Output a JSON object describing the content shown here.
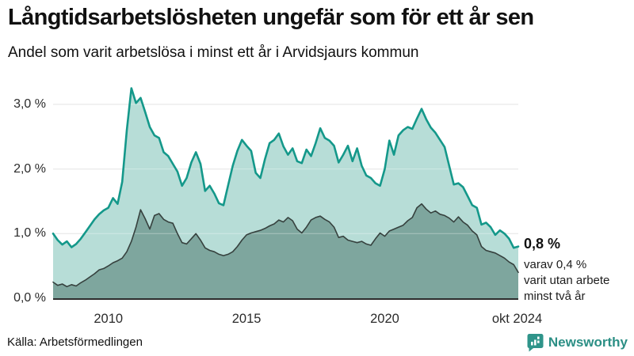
{
  "header": {
    "title": "Långtidsarbetslösheten ungefär som för ett år sen",
    "subtitle": "Andel som varit arbetslösa i minst ett år i Arvidsjaurs kommun"
  },
  "chart_data": {
    "type": "area",
    "title": "Långtidsarbetslösheten ungefär som för ett år sen",
    "subtitle": "Andel som varit arbetslösa i minst ett år i Arvidsjaurs kommun",
    "unit": "%",
    "x_start_year": 2008,
    "points_per_year": 6,
    "x_end_label": "okt 2024",
    "grid": true,
    "legend_position": "none",
    "y_axis": {
      "range": [
        0,
        3.4
      ],
      "ticks": [
        {
          "value": 3,
          "label": "3,0 %"
        },
        {
          "value": 2,
          "label": "2,0 %"
        },
        {
          "value": 1,
          "label": "1,0 %"
        },
        {
          "value": 0,
          "label": "0,0 %"
        }
      ]
    },
    "x_axis": {
      "ticks": [
        {
          "year": 2010,
          "label": "2010"
        },
        {
          "year": 2015,
          "label": "2015"
        },
        {
          "year": 2020,
          "label": "2020"
        },
        {
          "year": 2024.79,
          "label": "okt 2024"
        }
      ]
    },
    "series": [
      {
        "name": "Arbetslösa minst ett år",
        "line_color": "#14988a",
        "fill_color": "#b7ddd7",
        "line_width": 2.6,
        "last_value_label": "0,8 %",
        "values": [
          1.0,
          0.9,
          0.83,
          0.88,
          0.79,
          0.84,
          0.92,
          1.02,
          1.12,
          1.22,
          1.3,
          1.36,
          1.4,
          1.55,
          1.46,
          1.8,
          2.6,
          3.25,
          3.02,
          3.1,
          2.88,
          2.65,
          2.52,
          2.48,
          2.26,
          2.2,
          2.08,
          1.96,
          1.74,
          1.86,
          2.1,
          2.26,
          2.08,
          1.66,
          1.74,
          1.62,
          1.47,
          1.44,
          1.75,
          2.05,
          2.28,
          2.45,
          2.36,
          2.28,
          1.94,
          1.86,
          2.15,
          2.4,
          2.45,
          2.55,
          2.35,
          2.22,
          2.32,
          2.12,
          2.09,
          2.3,
          2.2,
          2.4,
          2.63,
          2.48,
          2.44,
          2.36,
          2.1,
          2.22,
          2.36,
          2.12,
          2.32,
          2.05,
          1.9,
          1.86,
          1.78,
          1.74,
          2.0,
          2.44,
          2.22,
          2.52,
          2.6,
          2.65,
          2.62,
          2.78,
          2.93,
          2.77,
          2.64,
          2.56,
          2.45,
          2.34,
          2.05,
          1.76,
          1.78,
          1.72,
          1.58,
          1.44,
          1.4,
          1.14,
          1.17,
          1.1,
          0.98,
          1.05,
          1.0,
          0.92,
          0.78,
          0.8
        ]
      },
      {
        "name": "Varav utan arbete minst två år",
        "line_color": "#36413e",
        "fill_color": "#7ea69e",
        "line_width": 1.6,
        "last_value_label": "0,4 %",
        "values": [
          0.25,
          0.2,
          0.22,
          0.18,
          0.21,
          0.19,
          0.24,
          0.28,
          0.33,
          0.38,
          0.44,
          0.46,
          0.5,
          0.55,
          0.58,
          0.62,
          0.72,
          0.88,
          1.1,
          1.37,
          1.23,
          1.07,
          1.28,
          1.31,
          1.22,
          1.18,
          1.16,
          1.0,
          0.86,
          0.84,
          0.92,
          1.0,
          0.9,
          0.78,
          0.74,
          0.72,
          0.68,
          0.66,
          0.68,
          0.72,
          0.8,
          0.9,
          0.98,
          1.01,
          1.03,
          1.05,
          1.08,
          1.12,
          1.15,
          1.21,
          1.18,
          1.25,
          1.2,
          1.07,
          1.01,
          1.1,
          1.21,
          1.25,
          1.27,
          1.22,
          1.18,
          1.1,
          0.94,
          0.96,
          0.9,
          0.88,
          0.86,
          0.88,
          0.84,
          0.82,
          0.92,
          1.01,
          0.96,
          1.04,
          1.07,
          1.1,
          1.13,
          1.2,
          1.25,
          1.4,
          1.46,
          1.38,
          1.32,
          1.35,
          1.3,
          1.28,
          1.24,
          1.18,
          1.26,
          1.18,
          1.13,
          1.04,
          0.98,
          0.8,
          0.74,
          0.72,
          0.7,
          0.66,
          0.62,
          0.56,
          0.52,
          0.4
        ]
      }
    ],
    "annotation": {
      "headline": "0,8 %",
      "lines": [
        "varav 0,4 %",
        "varit utan arbete",
        "minst två år"
      ]
    },
    "colors": {
      "grid": "#e2e2e2",
      "baseline": "#2d2d2d",
      "background": "#ffffff"
    }
  },
  "footer": {
    "source": "Källa: Arbetsförmedlingen",
    "brand": "Newsworthy",
    "brand_color": "#2c8f85"
  }
}
